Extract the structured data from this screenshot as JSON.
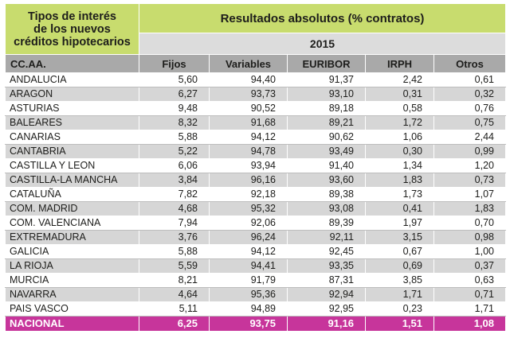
{
  "header": {
    "title_line1": "Tipos de interés",
    "title_line2": "de los nuevos",
    "title_line3": "créditos hipotecarios",
    "results_title": "Resultados absolutos (% contratos)",
    "year": "2015"
  },
  "columns": [
    "CC.AA.",
    "Fijos",
    "Variables",
    "EURIBOR",
    "IRPH",
    "Otros"
  ],
  "rows": [
    [
      "ANDALUCIA",
      "5,60",
      "94,40",
      "91,37",
      "2,42",
      "0,61"
    ],
    [
      "ARAGON",
      "6,27",
      "93,73",
      "93,10",
      "0,31",
      "0,32"
    ],
    [
      "ASTURIAS",
      "9,48",
      "90,52",
      "89,18",
      "0,58",
      "0,76"
    ],
    [
      "BALEARES",
      "8,32",
      "91,68",
      "89,21",
      "1,72",
      "0,75"
    ],
    [
      "CANARIAS",
      "5,88",
      "94,12",
      "90,62",
      "1,06",
      "2,44"
    ],
    [
      "CANTABRIA",
      "5,22",
      "94,78",
      "93,49",
      "0,30",
      "0,99"
    ],
    [
      "CASTILLA Y LEON",
      "6,06",
      "93,94",
      "91,40",
      "1,34",
      "1,20"
    ],
    [
      "CASTILLA-LA MANCHA",
      "3,84",
      "96,16",
      "93,60",
      "1,83",
      "0,73"
    ],
    [
      "CATALUÑA",
      "7,82",
      "92,18",
      "89,38",
      "1,73",
      "1,07"
    ],
    [
      "COM. MADRID",
      "4,68",
      "95,32",
      "93,08",
      "0,41",
      "1,83"
    ],
    [
      "COM. VALENCIANA",
      "7,94",
      "92,06",
      "89,39",
      "1,97",
      "0,70"
    ],
    [
      "EXTREMADURA",
      "3,76",
      "96,24",
      "92,11",
      "3,15",
      "0,98"
    ],
    [
      "GALICIA",
      "5,88",
      "94,12",
      "92,45",
      "0,67",
      "1,00"
    ],
    [
      "LA RIOJA",
      "5,59",
      "94,41",
      "93,35",
      "0,69",
      "0,37"
    ],
    [
      "MURCIA",
      "8,21",
      "91,79",
      "87,31",
      "3,85",
      "0,63"
    ],
    [
      "NAVARRA",
      "4,64",
      "95,36",
      "92,94",
      "1,71",
      "0,71"
    ],
    [
      "PAIS VASCO",
      "5,11",
      "94,89",
      "92,95",
      "0,23",
      "1,71"
    ]
  ],
  "total": [
    "NACIONAL",
    "6,25",
    "93,75",
    "91,16",
    "1,51",
    "1,08"
  ],
  "colors": {
    "header_green": "#c8dc6e",
    "year_gray": "#dcdcdc",
    "colhead_gray": "#a9a9a9",
    "stripe_gray": "#d6d6d6",
    "total_magenta": "#c7359b"
  }
}
